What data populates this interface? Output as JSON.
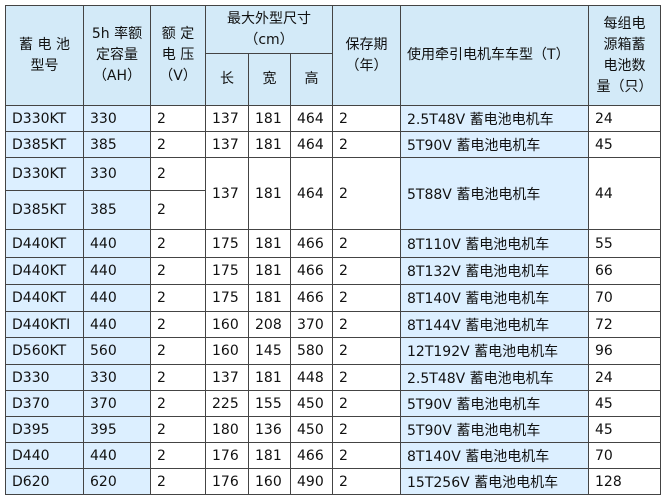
{
  "table": {
    "header": {
      "model": [
        "蓄 电 池",
        "型号"
      ],
      "capacity": [
        "5h 率额",
        "定容量",
        "（AH）"
      ],
      "voltage": [
        "额 定",
        "电 压",
        "（V）"
      ],
      "size": {
        "title": [
          "最大外型尺寸",
          "（cm）"
        ],
        "sub": [
          "长",
          "宽",
          "高"
        ]
      },
      "storage": [
        "保存期",
        "（年）"
      ],
      "vehicle": [
        "使用牵引电机车车型（T）"
      ],
      "count": [
        "每组电",
        "源箱蓄",
        "电池数",
        "量（只）"
      ]
    },
    "rows": [
      [
        "D330KT",
        "330",
        "2",
        "137",
        "181",
        "464",
        "2",
        "2.5T48V 蓄电池电机车",
        "24"
      ],
      [
        "D385KT",
        "385",
        "2",
        "137",
        "181",
        "464",
        "2",
        "5T90V 蓄电池电机车",
        "45"
      ],
      [
        "D330KT",
        "330",
        "2",
        "137",
        "181",
        "464",
        "2",
        "5T88V 蓄电池电机车",
        "44"
      ],
      [
        "D385KT",
        "385",
        "2"
      ],
      [
        "D440KT",
        "440",
        "2",
        "175",
        "181",
        "466",
        "2",
        "8T110V 蓄电池电机车",
        "55"
      ],
      [
        "D440KT",
        "440",
        "2",
        "175",
        "181",
        "466",
        "2",
        "8T132V 蓄电池电机车",
        "66"
      ],
      [
        "D440KT",
        "440",
        "2",
        "175",
        "181",
        "466",
        "2",
        "8T140V 蓄电池电机车",
        "70"
      ],
      [
        "D440KTI",
        "440",
        "2",
        "160",
        "208",
        "370",
        "2",
        "8T144V 蓄电池电机车",
        "72"
      ],
      [
        "D560KT",
        "560",
        "2",
        "160",
        "145",
        "580",
        "2",
        "12T192V 蓄电池电机车",
        "96"
      ],
      [
        "D330",
        "330",
        "2",
        "137",
        "181",
        "448",
        "2",
        "2.5T48V 蓄电池电机车",
        "24"
      ],
      [
        "D370",
        "370",
        "2",
        "225",
        "155",
        "450",
        "2",
        "5T90V 蓄电池电机车",
        "45"
      ],
      [
        "D395",
        "395",
        "2",
        "180",
        "136",
        "450",
        "2",
        "5T90V 蓄电池电机车",
        "45"
      ],
      [
        "D440",
        "440",
        "2",
        "176",
        "181",
        "466",
        "2",
        "8T140V 蓄电池电机车",
        "70"
      ],
      [
        "D620",
        "620",
        "2",
        "176",
        "160",
        "490",
        "2",
        "15T256V 蓄电池电机车",
        "128"
      ]
    ]
  }
}
